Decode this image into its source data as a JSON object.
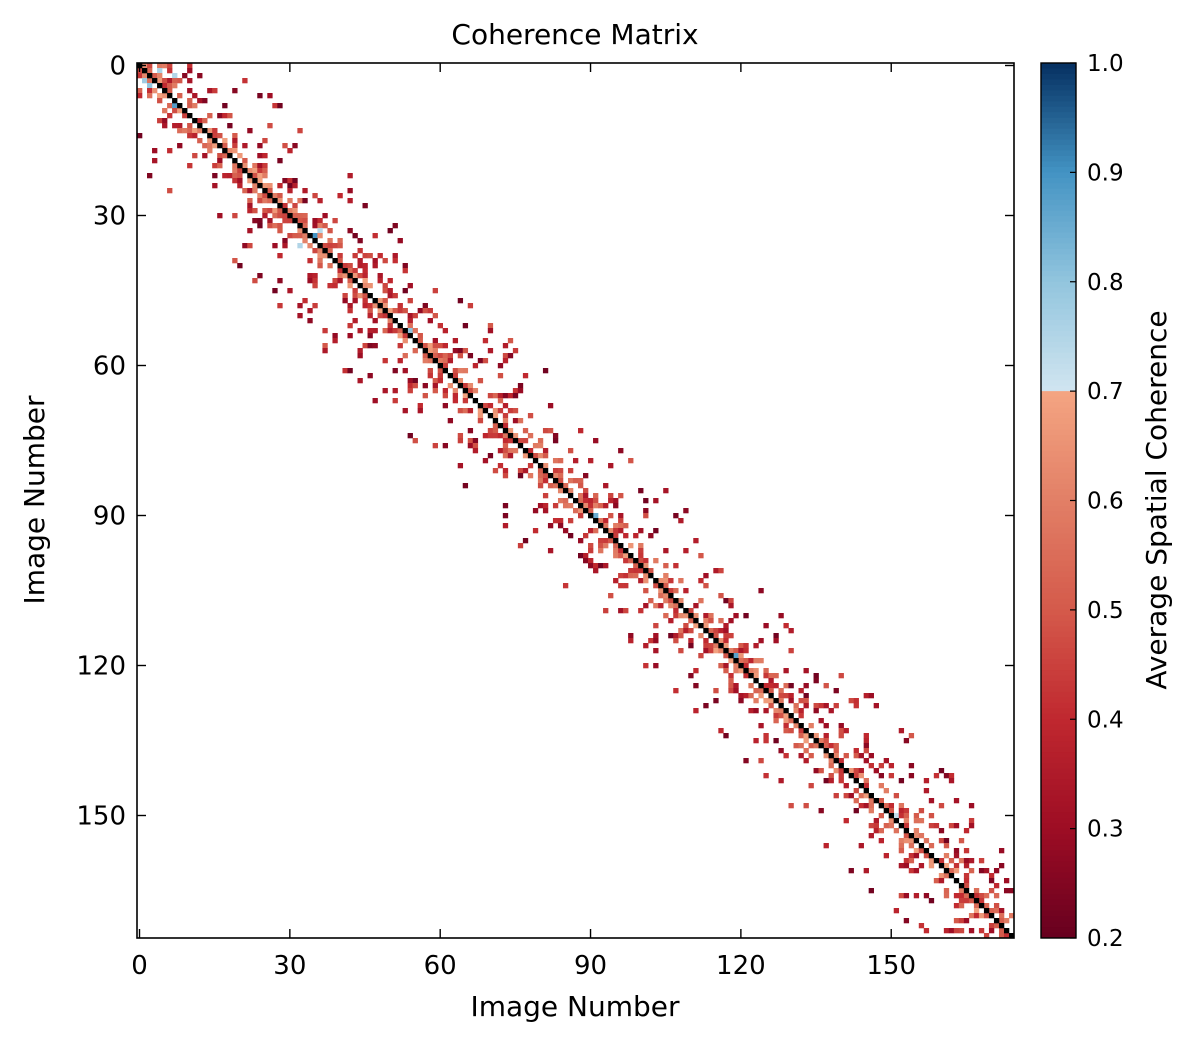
{
  "chart_data": {
    "type": "heatmap",
    "title": "Coherence Matrix",
    "xlabel": "Image Number",
    "ylabel": "Image Number",
    "matrix_size": 175,
    "xticks": [
      0,
      30,
      60,
      90,
      120,
      150
    ],
    "yticks": [
      0,
      30,
      60,
      90,
      120,
      150
    ],
    "x_tick_labels": [
      "0",
      "30",
      "60",
      "90",
      "120",
      "150"
    ],
    "y_tick_labels": [
      "0",
      "30",
      "60",
      "90",
      "120",
      "150"
    ],
    "diagonal_value": 1.0,
    "diagonal_color": "#000000",
    "structure": "sparse banded matrix: coherence values only near the diagonal (band half-width roughly 5-20 images); cells outside the band are blank",
    "notable_cells": [
      {
        "row": 3,
        "col": 1,
        "value": 0.78
      },
      {
        "row": 1,
        "col": 4,
        "value": 0.76
      },
      {
        "row": 2,
        "col": 7,
        "value": 0.75
      },
      {
        "row": 4,
        "col": 2,
        "value": 0.8
      },
      {
        "row": 8,
        "col": 7,
        "value": 0.88
      },
      {
        "row": 33,
        "col": 36,
        "value": 0.74
      },
      {
        "row": 34,
        "col": 35,
        "value": 0.9
      },
      {
        "row": 36,
        "col": 32,
        "value": 0.75
      },
      {
        "row": 53,
        "col": 54,
        "value": 0.8
      },
      {
        "row": 90,
        "col": 91,
        "value": 0.85
      },
      {
        "row": 118,
        "col": 119,
        "value": 0.87
      },
      {
        "row": 150,
        "col": 151,
        "value": 0.72
      }
    ],
    "colorbar": {
      "label": "Average Spatial Coherence",
      "min": 0.2,
      "max": 1.0,
      "ticks": [
        0.2,
        0.3,
        0.4,
        0.5,
        0.6,
        0.7,
        0.8,
        0.9,
        1.0
      ],
      "tick_labels": [
        "0.2",
        "0.3",
        "0.4",
        "0.5",
        "0.6",
        "0.7",
        "0.8",
        "0.9",
        "1.0"
      ],
      "colormap": "RdBu diverging with break at 0.7",
      "stops": [
        {
          "value": 0.2,
          "color": "#67001f"
        },
        {
          "value": 0.3,
          "color": "#9d0d24"
        },
        {
          "value": 0.4,
          "color": "#c0282f"
        },
        {
          "value": 0.5,
          "color": "#d45a4b"
        },
        {
          "value": 0.6,
          "color": "#e27f66"
        },
        {
          "value": 0.7,
          "color": "#f4a582"
        },
        {
          "value": 0.7,
          "color": "#d1e5f0"
        },
        {
          "value": 0.8,
          "color": "#92c5de"
        },
        {
          "value": 0.9,
          "color": "#4393c3"
        },
        {
          "value": 1.0,
          "color": "#053061"
        }
      ]
    }
  }
}
